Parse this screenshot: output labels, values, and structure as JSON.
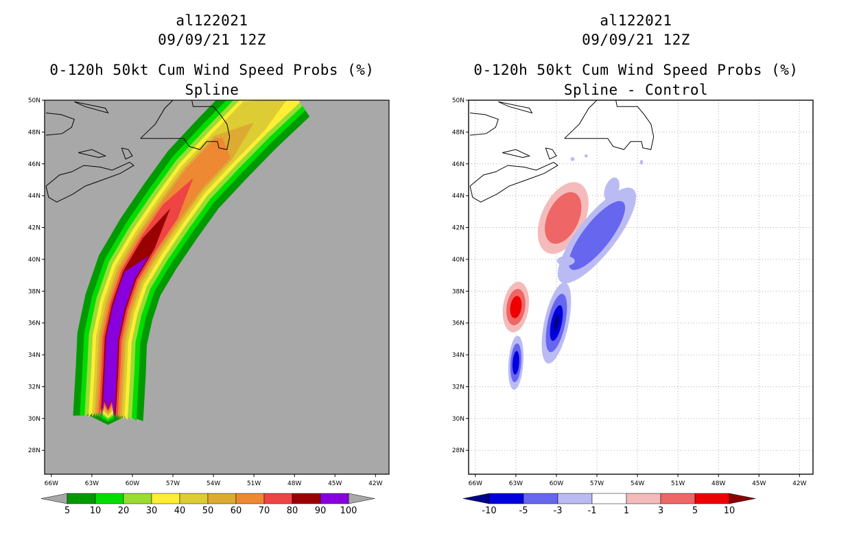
{
  "chart_data": [
    {
      "type": "contour_map",
      "header": {
        "storm_id": "al122021",
        "datetime": "09/09/21 12Z"
      },
      "title": "0-120h 50kt Cum Wind Speed Probs (%)",
      "subtitle": "Spline",
      "lon_range": [
        -66.5,
        -41
      ],
      "lat_range": [
        26.5,
        50
      ],
      "x_ticks": [
        "66W",
        "63W",
        "60W",
        "57W",
        "54W",
        "51W",
        "48W",
        "45W",
        "42W"
      ],
      "y_ticks": [
        "28N",
        "30N",
        "32N",
        "34N",
        "36N",
        "38N",
        "40N",
        "42N",
        "44N",
        "46N",
        "48N",
        "50N"
      ],
      "background": "#a8a8a8",
      "colorbar": {
        "levels": [
          "5",
          "10",
          "20",
          "30",
          "40",
          "50",
          "60",
          "70",
          "80",
          "90",
          "100"
        ],
        "colors": [
          "#009900",
          "#00dd00",
          "#99dd33",
          "#ffee33",
          "#ddcc33",
          "#ddaa33",
          "#ee8833",
          "#ee4444",
          "#990000",
          "#8800dd"
        ],
        "under": "#a8a8a8",
        "over": "#a8a8a8"
      },
      "fields": [
        {
          "level": 5,
          "color": "#009900",
          "halfwidth": 2.6,
          "lat_cut": 29.6
        },
        {
          "level": 10,
          "color": "#00dd00",
          "halfwidth": 2.1,
          "lat_cut": 29.8
        },
        {
          "level": 20,
          "color": "#99dd33",
          "halfwidth": 1.75,
          "lat_cut": 29.95
        },
        {
          "level": 30,
          "color": "#ffee33",
          "halfwidth": 1.45,
          "lat_cut": 30.05
        },
        {
          "level": 40,
          "color": "#ddcc33",
          "halfwidth": 1.2,
          "lat_cut": 30.15,
          "lat_max": 49.5
        },
        {
          "level": 50,
          "color": "#ddaa33",
          "halfwidth": 1.0,
          "lat_cut": 30.25,
          "lat_max": 48.0
        },
        {
          "level": 60,
          "color": "#ee8833",
          "halfwidth": 0.85,
          "lat_cut": 30.35,
          "lat_max": 47.0
        },
        {
          "level": 70,
          "color": "#ee4444",
          "halfwidth": 0.7,
          "lat_cut": 30.45,
          "lat_max": 44.5
        },
        {
          "level": 80,
          "color": "#990000",
          "halfwidth": 0.55,
          "lat_cut": 30.55,
          "lat_max": 42.6
        },
        {
          "level": 90,
          "color": "#8800dd",
          "halfwidth": 0.45,
          "lat_cut": 30.6,
          "lat_max": 39.6
        }
      ],
      "track": [
        {
          "lat": 30.0,
          "lon": -61.8
        },
        {
          "lat": 31.5,
          "lon": -61.7
        },
        {
          "lat": 33.0,
          "lon": -61.6
        },
        {
          "lat": 35.0,
          "lon": -61.5
        },
        {
          "lat": 37.0,
          "lon": -61.0
        },
        {
          "lat": 39.0,
          "lon": -60.2
        },
        {
          "lat": 41.0,
          "lon": -58.8
        },
        {
          "lat": 43.0,
          "lon": -57.2
        },
        {
          "lat": 45.0,
          "lon": -55.5
        },
        {
          "lat": 47.0,
          "lon": -53.3
        },
        {
          "lat": 49.0,
          "lon": -51.0
        },
        {
          "lat": 51.0,
          "lon": -48.5
        }
      ]
    },
    {
      "type": "contour_map",
      "header": {
        "storm_id": "al122021",
        "datetime": "09/09/21 12Z"
      },
      "title": "0-120h 50kt Cum Wind Speed Probs (%)",
      "subtitle": "Spline - Control",
      "lon_range": [
        -66.5,
        -41
      ],
      "lat_range": [
        26.5,
        50
      ],
      "x_ticks": [
        "66W",
        "63W",
        "60W",
        "57W",
        "54W",
        "51W",
        "48W",
        "45W",
        "42W"
      ],
      "y_ticks": [
        "28N",
        "30N",
        "32N",
        "34N",
        "36N",
        "38N",
        "40N",
        "42N",
        "44N",
        "46N",
        "48N",
        "50N"
      ],
      "background": "#ffffff",
      "grid": "dotted",
      "colorbar": {
        "levels": [
          "-10",
          "-5",
          "-3",
          "-1",
          "1",
          "3",
          "5",
          "10"
        ],
        "colors": [
          "#0000dd",
          "#6666ee",
          "#bbbbf4",
          "#ffffff",
          "#f4bbbb",
          "#ee6666",
          "#ee0000"
        ],
        "under": "#000088",
        "over": "#880000"
      },
      "fields": [
        {
          "name": "neg_small_patch_a",
          "lon": -58.8,
          "lat": 46.3,
          "level": -1,
          "color": "#bbbbf4"
        },
        {
          "name": "neg_small_patch_b",
          "lon": -57.8,
          "lat": 46.5,
          "level": -1,
          "color": "#bbbbf4"
        },
        {
          "name": "neg_small_patch_c",
          "lon": -53.7,
          "lat": 46.1,
          "level": -1,
          "color": "#bbbbf4"
        },
        {
          "name": "pos_cell_north",
          "lon": -59.5,
          "lat": 42.6,
          "levels": [
            1,
            3
          ],
          "max": 5
        },
        {
          "name": "pos_cell_south",
          "lon": -63.0,
          "lat": 37.0,
          "levels": [
            1,
            3,
            5
          ],
          "max": 10
        },
        {
          "name": "neg_band_north",
          "lon": -57.0,
          "lat": 41.5,
          "levels": [
            -1,
            -3
          ],
          "min": -5
        },
        {
          "name": "neg_band_mid",
          "lon": -60.0,
          "lat": 36.0,
          "levels": [
            -1,
            -3,
            -5,
            -10
          ],
          "min": -12
        },
        {
          "name": "neg_cell_south",
          "lon": -63.0,
          "lat": 33.5,
          "levels": [
            -1,
            -3,
            -5
          ],
          "min": -10
        }
      ]
    }
  ]
}
